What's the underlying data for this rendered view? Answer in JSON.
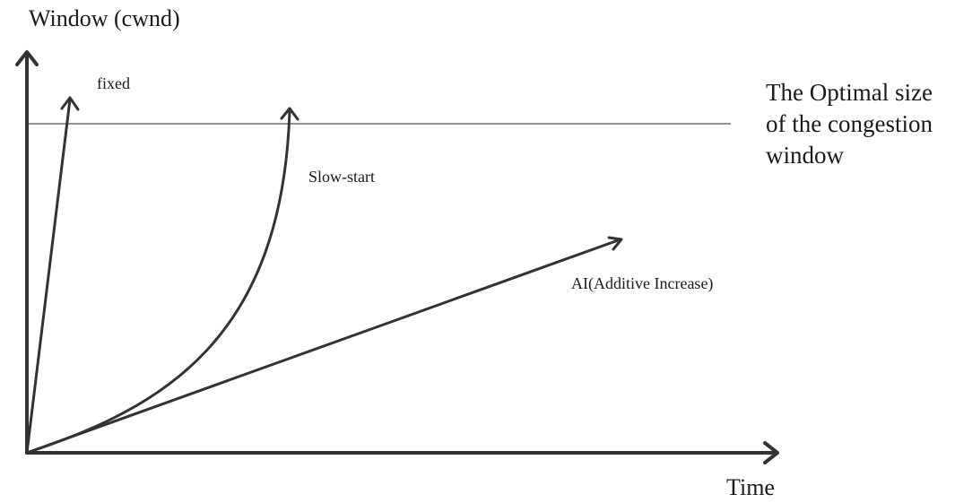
{
  "diagram": {
    "y_axis_title": "Window (cwnd)",
    "x_axis_title": "Time",
    "curve_labels": {
      "fixed": "fixed",
      "slow_start": "Slow-start",
      "additive_increase": "AI(Additive Increase)"
    },
    "optimal_line_label": "The Optimal size of the congestion window",
    "colors": {
      "line": "#333333",
      "optimal_line": "#555555",
      "text": "#1a1a1a"
    }
  }
}
